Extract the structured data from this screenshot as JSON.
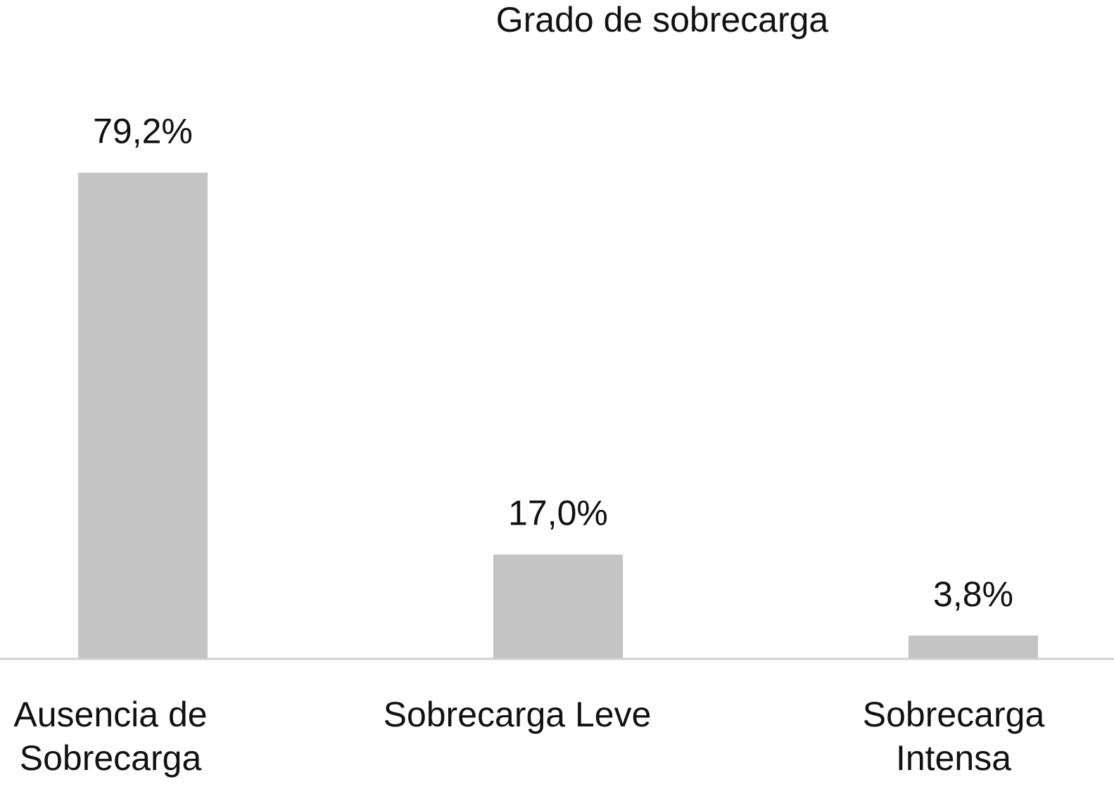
{
  "chart_data": {
    "type": "bar",
    "title": "Grado de sobrecarga",
    "categories": [
      [
        "Ausencia de",
        "Sobrecarga"
      ],
      [
        "Sobrecarga Leve"
      ],
      [
        "Sobrecarga",
        "Intensa"
      ]
    ],
    "values": [
      79.2,
      17.0,
      3.8
    ],
    "data_labels": [
      "79,2%",
      "17,0%",
      "3,8%"
    ],
    "xlabel": "",
    "ylabel": "",
    "ylim": [
      0,
      100
    ],
    "grid": false,
    "legend": "none",
    "colors": {
      "bar": "#c4c4c4",
      "axis": "#d0d0d0",
      "text": "#111111"
    }
  }
}
